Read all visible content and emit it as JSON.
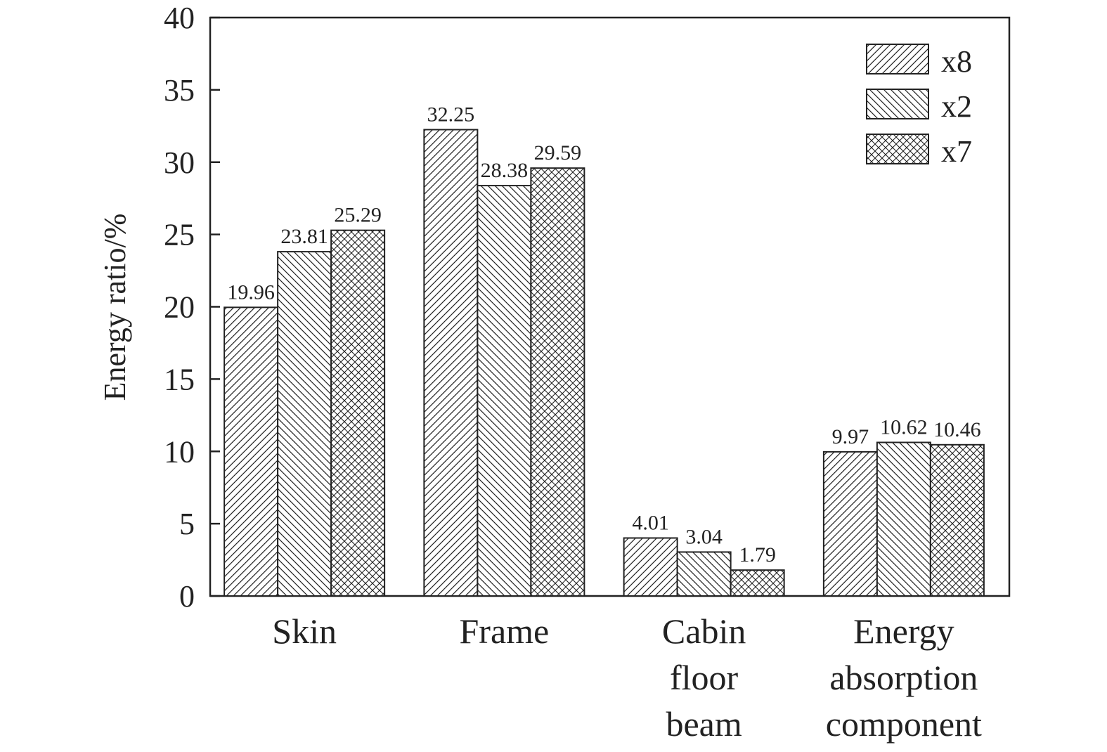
{
  "chart_data": {
    "type": "bar",
    "categories": [
      [
        "Skin"
      ],
      [
        "Frame"
      ],
      [
        "Cabin",
        "floor",
        "beam"
      ],
      [
        "Energy",
        "absorption",
        "component"
      ]
    ],
    "series": [
      {
        "name": "x8",
        "values": [
          19.96,
          32.25,
          4.01,
          9.97
        ],
        "pattern": "diag-forward"
      },
      {
        "name": "x2",
        "values": [
          23.81,
          28.38,
          3.04,
          10.62
        ],
        "pattern": "diag-back"
      },
      {
        "name": "x7",
        "values": [
          25.29,
          29.59,
          1.79,
          10.46
        ],
        "pattern": "crosshatch"
      }
    ],
    "data_labels": [
      [
        "19.96",
        "32.25",
        "4.01",
        "9.97"
      ],
      [
        "23.81",
        "28.38",
        "3.04",
        "10.62"
      ],
      [
        "25.29",
        "29.59",
        "1.79",
        "10.46"
      ]
    ],
    "title": "",
    "xlabel": "",
    "ylabel": "Energy ratio/%",
    "ylim": [
      0,
      40
    ],
    "yticks": [
      0,
      5,
      10,
      15,
      20,
      25,
      30,
      35,
      40
    ],
    "grid": false,
    "legend_position": "top-right",
    "colors": {
      "bar_fill": "#ffffff",
      "hatch": "#222222",
      "axis": "#222222"
    }
  }
}
